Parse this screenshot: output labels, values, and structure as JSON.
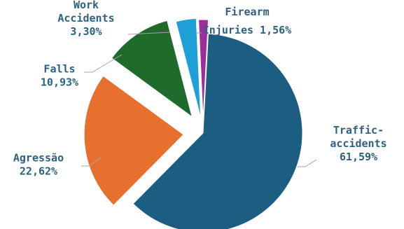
{
  "chart_data": {
    "type": "pie",
    "title": "",
    "slices": [
      {
        "name": "Traffic-accidents",
        "label_lines": [
          "Traffic-",
          "accidents"
        ],
        "value": 61.59,
        "value_label": "61,59%",
        "color": "#1b5e82"
      },
      {
        "name": "Agressão",
        "label_lines": [
          "Agressão"
        ],
        "value": 22.62,
        "value_label": "22,62%",
        "color": "#e8702f"
      },
      {
        "name": "Falls",
        "label_lines": [
          "Falls"
        ],
        "value": 10.93,
        "value_label": "10,93%",
        "color": "#1e6b2c"
      },
      {
        "name": "Work Accidents",
        "label_lines": [
          "Work",
          "Accidents"
        ],
        "value": 3.3,
        "value_label": "3,30%",
        "color": "#1e9fd8"
      },
      {
        "name": "Firearm Injuries",
        "label_lines": [
          "Firearm",
          "Injuries"
        ],
        "value": 1.56,
        "value_label": "1,56%",
        "color": "#9b2d9d"
      }
    ],
    "label_color": "#2e6080",
    "legend": "none",
    "exploded": true
  }
}
